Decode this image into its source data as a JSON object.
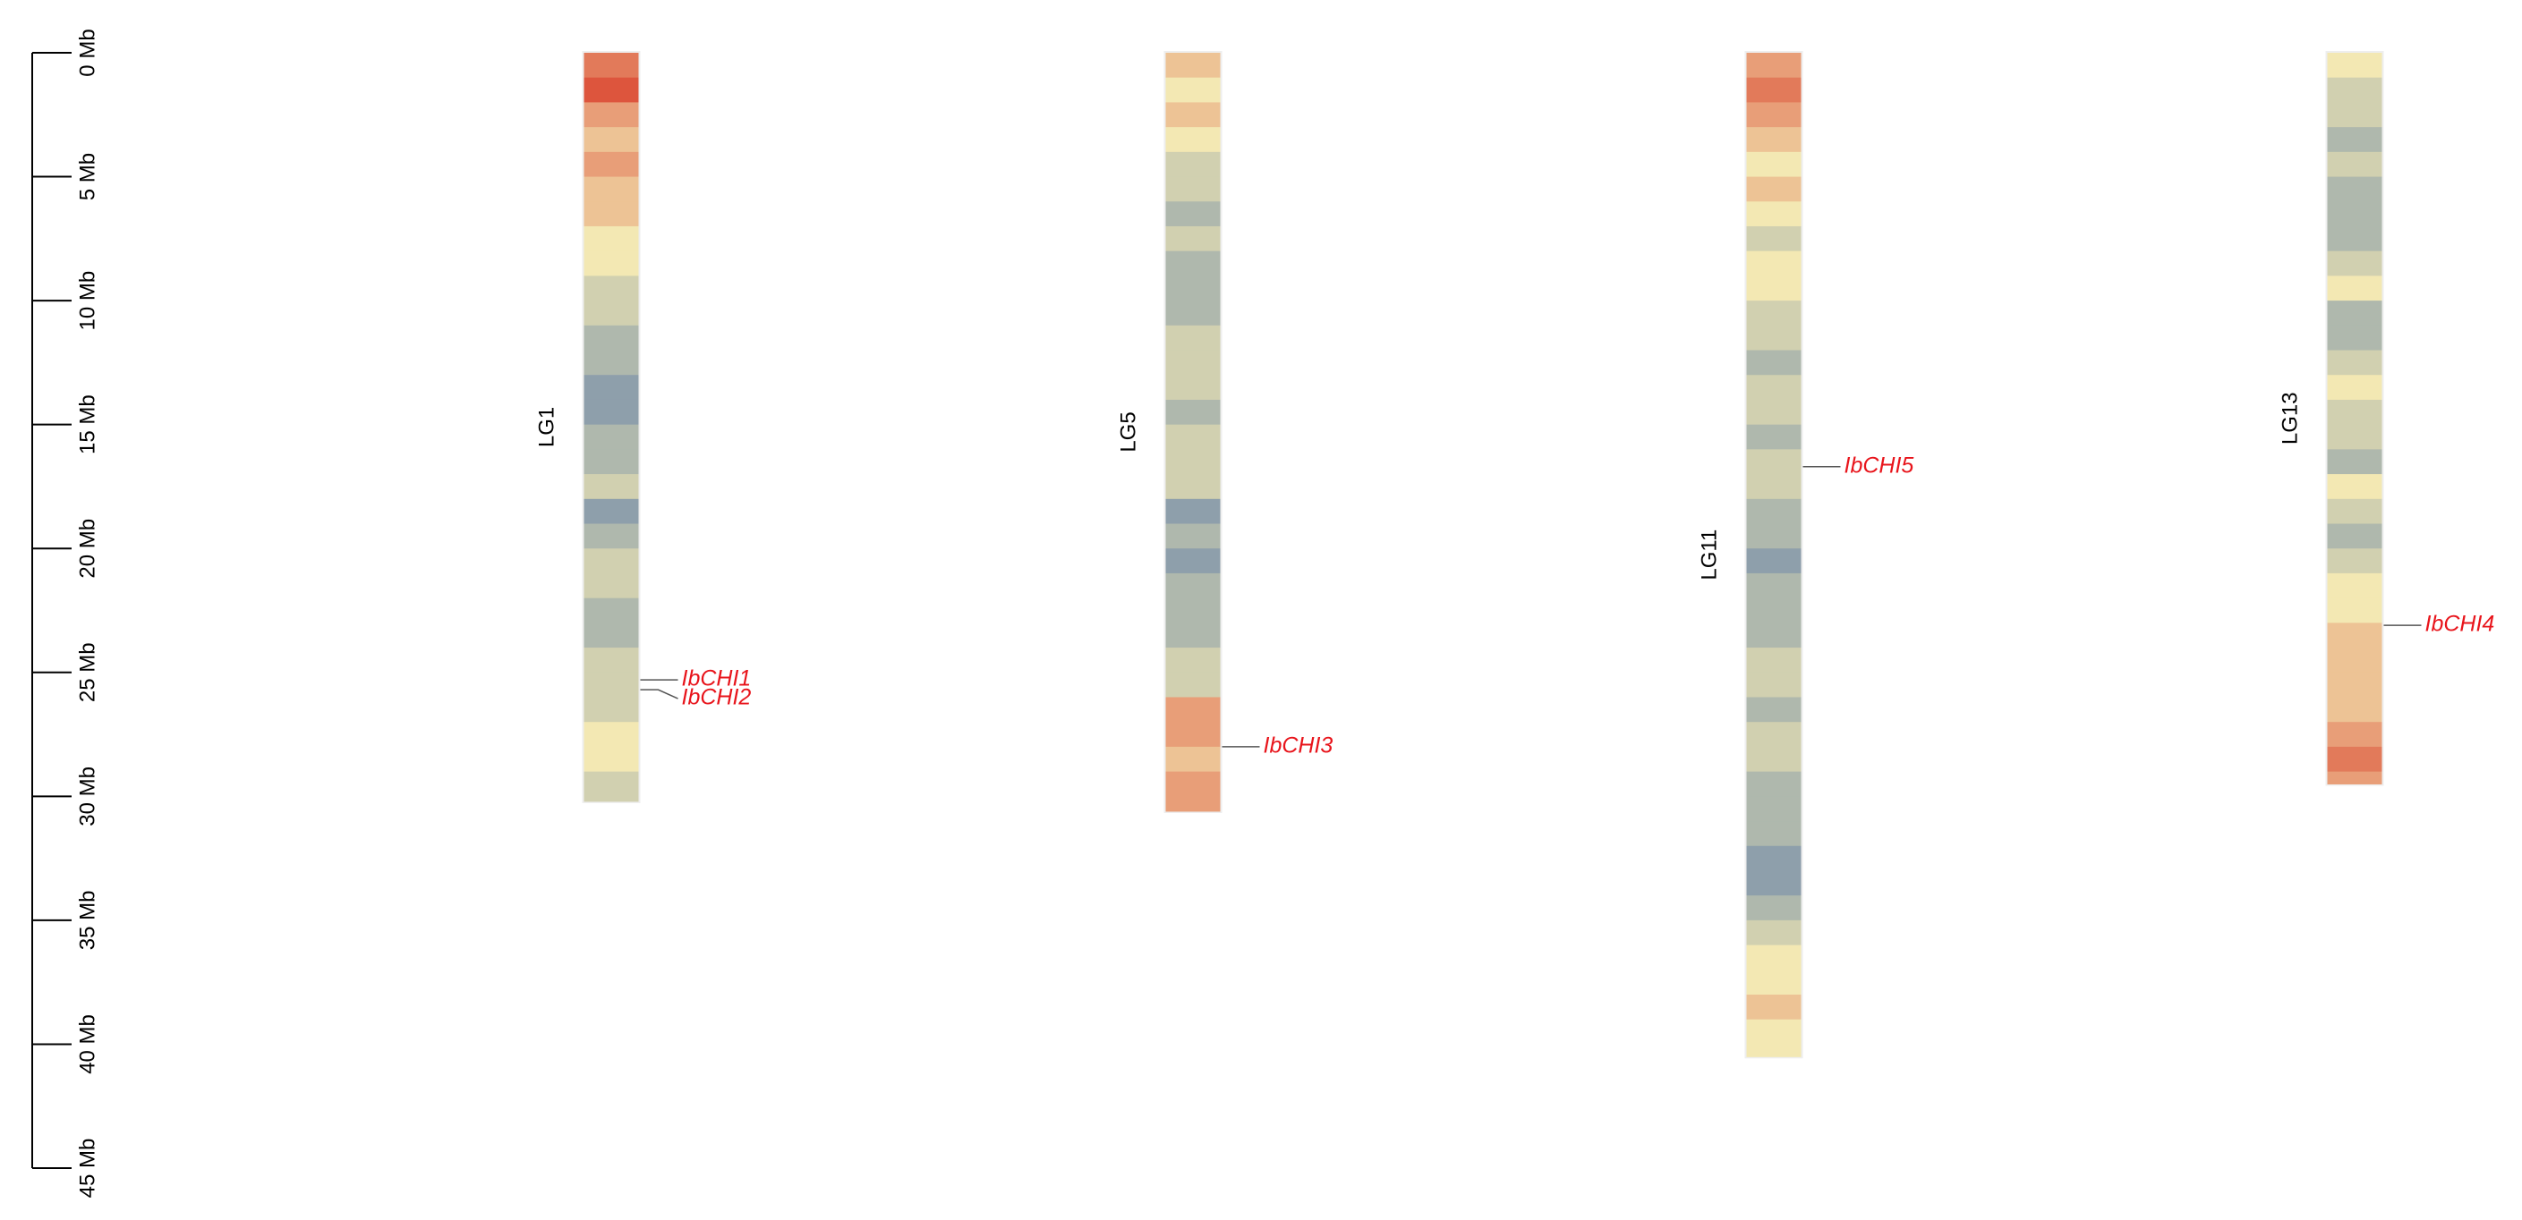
{
  "chart_data": {
    "type": "chromosome-map",
    "ylim": [
      0,
      45
    ],
    "yticks": [
      {
        "value": 0,
        "label": "0 Mb"
      },
      {
        "value": 5,
        "label": "5 Mb"
      },
      {
        "value": 10,
        "label": "10 Mb"
      },
      {
        "value": 15,
        "label": "15 Mb"
      },
      {
        "value": 20,
        "label": "20 Mb"
      },
      {
        "value": 25,
        "label": "25 Mb"
      },
      {
        "value": 30,
        "label": "30 Mb"
      },
      {
        "value": 35,
        "label": "35 Mb"
      },
      {
        "value": 40,
        "label": "40 Mb"
      },
      {
        "value": 45,
        "label": "45 Mb"
      }
    ],
    "gene_color": "#e8141b",
    "density_colors": [
      "#4a6fa5",
      "#f3e8b3",
      "#d7301f"
    ],
    "density_range": [
      0,
      10
    ],
    "chromosomes": [
      {
        "name": "LG1",
        "length": 30.2,
        "density": [
          8,
          9,
          7,
          6,
          7,
          6,
          6,
          5,
          5,
          4,
          4,
          3,
          3,
          2,
          2,
          3,
          3,
          4,
          2,
          3,
          4,
          4,
          3,
          3,
          4,
          4,
          4,
          5,
          5,
          4,
          4
        ],
        "genes": [
          {
            "name": "IbCHI1",
            "position": 25.3
          },
          {
            "name": "IbCHI2",
            "position": 25.7
          }
        ]
      },
      {
        "name": "LG5",
        "length": 30.6,
        "density": [
          6,
          5,
          6,
          5,
          4,
          4,
          3,
          4,
          3,
          3,
          3,
          4,
          4,
          4,
          3,
          4,
          4,
          4,
          2,
          3,
          2,
          3,
          3,
          3,
          4,
          4,
          7,
          7,
          6,
          7,
          7
        ],
        "genes": [
          {
            "name": "IbCHI3",
            "position": 28.0
          }
        ]
      },
      {
        "name": "LG11",
        "length": 40.5,
        "density": [
          7,
          8,
          7,
          6,
          5,
          6,
          5,
          4,
          5,
          5,
          4,
          4,
          3,
          4,
          4,
          3,
          4,
          4,
          3,
          3,
          2,
          3,
          3,
          3,
          4,
          4,
          3,
          4,
          4,
          3,
          3,
          3,
          2,
          2,
          3,
          4,
          5,
          5,
          6,
          5,
          5
        ],
        "genes": [
          {
            "name": "IbCHI5",
            "position": 16.7
          }
        ]
      },
      {
        "name": "LG13",
        "length": 29.5,
        "density": [
          5,
          4,
          4,
          3,
          4,
          3,
          3,
          3,
          4,
          5,
          3,
          3,
          4,
          5,
          4,
          4,
          3,
          5,
          4,
          3,
          4,
          5,
          5,
          6,
          6,
          6,
          6,
          7,
          8,
          7
        ],
        "genes": [
          {
            "name": "IbCHI4",
            "position": 23.1
          }
        ]
      }
    ]
  }
}
